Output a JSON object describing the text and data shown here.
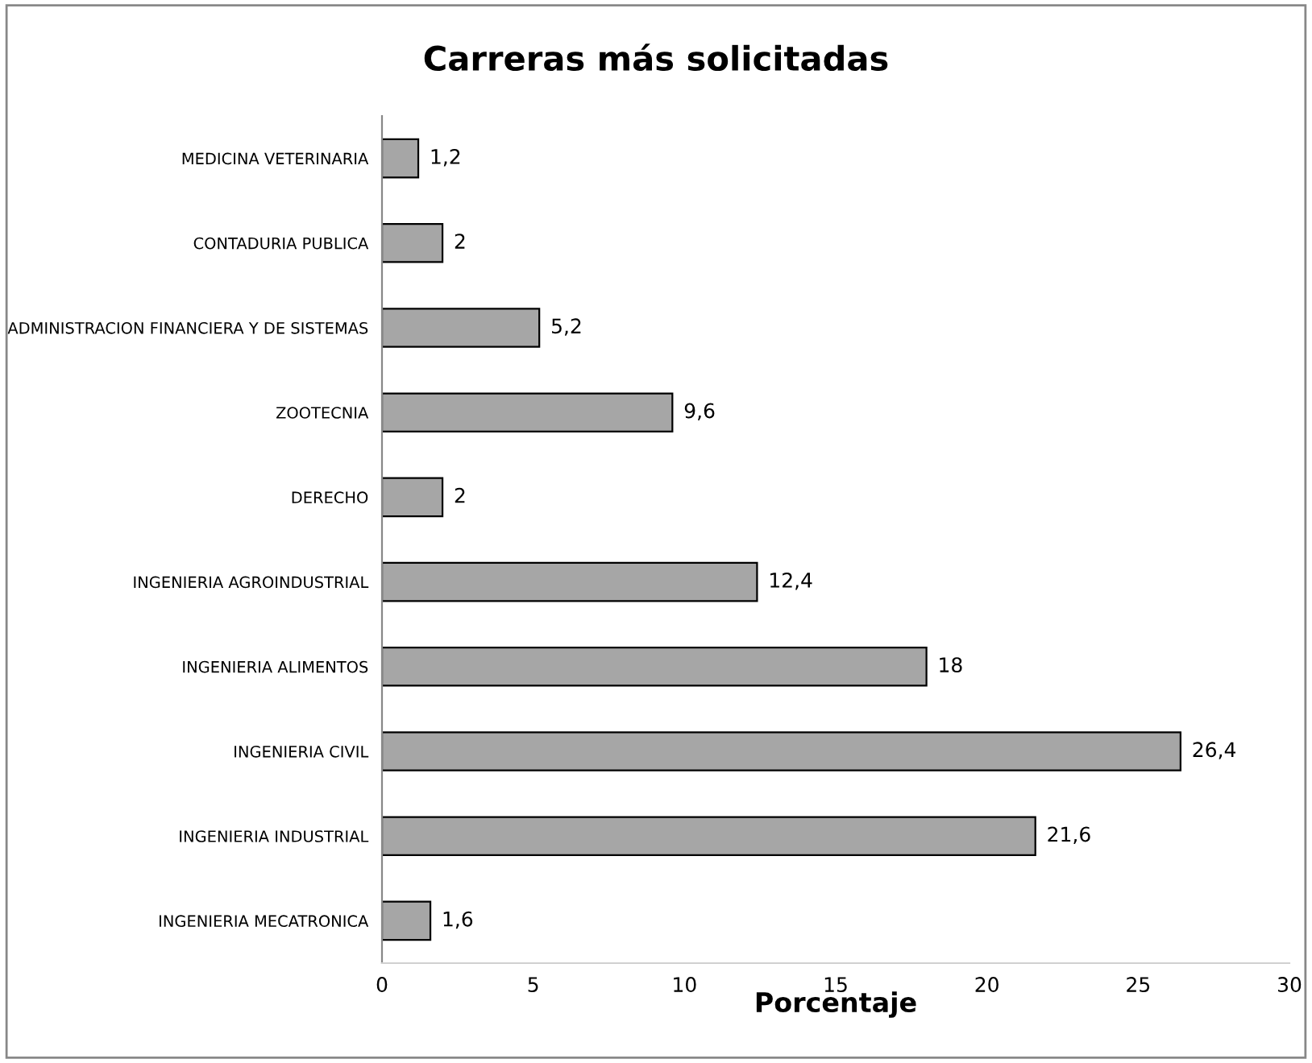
{
  "chart_data": {
    "type": "bar",
    "orientation": "horizontal",
    "title": "Carreras más solicitadas",
    "xlabel": "Porcentaje",
    "categories": [
      "MEDICINA VETERINARIA",
      "CONTADURIA PUBLICA",
      "ADMINISTRACION FINANCIERA Y DE SISTEMAS",
      "ZOOTECNIA",
      "DERECHO",
      "INGENIERIA AGROINDUSTRIAL",
      "INGENIERIA ALIMENTOS",
      "INGENIERIA CIVIL",
      "INGENIERIA INDUSTRIAL",
      "INGENIERIA MECATRONICA"
    ],
    "values": [
      1.2,
      2,
      5.2,
      9.6,
      2,
      12.4,
      18,
      26.4,
      21.6,
      1.6
    ],
    "value_labels": [
      "1,2",
      "2",
      "5,2",
      "9,6",
      "2",
      "12,4",
      "18",
      "26,4",
      "21,6",
      "1,6"
    ],
    "color": "#a6a6a6",
    "xlim": [
      0,
      30
    ],
    "xticks": [
      0,
      5,
      10,
      15,
      20,
      25,
      30
    ],
    "grid": false,
    "legend": false
  }
}
